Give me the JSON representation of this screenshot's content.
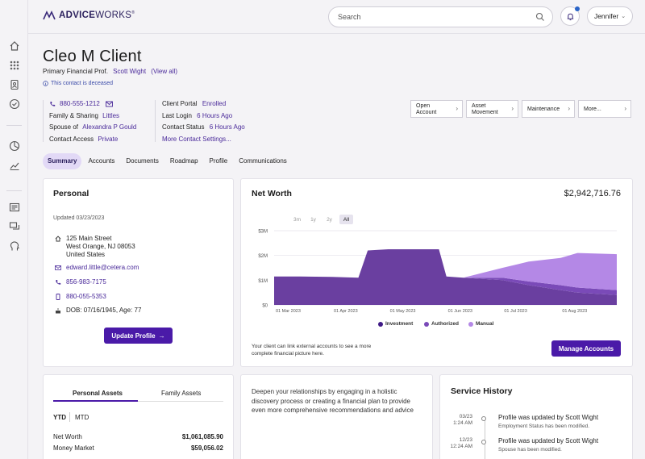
{
  "app": {
    "logo_bold": "ADVICE",
    "logo_light": "WORKS"
  },
  "header": {
    "search_placeholder": "Search",
    "user_name": "Jennifer"
  },
  "sidebar": {
    "items": [
      "home-icon",
      "apps-grid-icon",
      "id-card-icon",
      "checklist-icon",
      "pie-chart-icon",
      "trend-chart-icon",
      "news-icon",
      "chat-icon",
      "head-icon"
    ]
  },
  "client": {
    "name": "Cleo M Client",
    "primary_label": "Primary Financial Prof.",
    "primary_name": "Scott Wight",
    "view_all": "(View all)",
    "deceased_note": "This contact is deceased"
  },
  "info": {
    "phone": "880-555-1212",
    "family_label": "Family & Sharing",
    "family_value": "Littles",
    "spouse_label": "Spouse of",
    "spouse_value": "Alexandra P Gould",
    "contact_access_label": "Contact Access",
    "contact_access_value": "Private",
    "portal_label": "Client Portal",
    "portal_value": "Enrolled",
    "last_login_label": "Last Login",
    "last_login_value": "6 Hours Ago",
    "status_label": "Contact Status",
    "status_value": "6 Hours Ago",
    "more_settings": "More Contact Settings..."
  },
  "actions": [
    {
      "line1": "Open",
      "line2": "Account"
    },
    {
      "line1": "Asset",
      "line2": "Movement"
    },
    {
      "line1": "Maintenance",
      "line2": ""
    },
    {
      "line1": "More...",
      "line2": ""
    }
  ],
  "tabs": [
    "Summary",
    "Accounts",
    "Documents",
    "Roadmap",
    "Profile",
    "Communications"
  ],
  "personal": {
    "title": "Personal",
    "updated": "Updated 03/23/2023",
    "address1": "125 Main Street",
    "address2": "West Orange, NJ 08053",
    "address3": "United States",
    "email": "edward.little@cetera.com",
    "phone1": "856-983-7175",
    "phone2": "880-055-5353",
    "dob": "DOB: 07/16/1945, Age: 77",
    "update_button": "Update Profile"
  },
  "networth": {
    "title": "Net Worth",
    "total": "$2,942,716.76",
    "ranges": [
      "3m",
      "1y",
      "2y",
      "All"
    ],
    "selected_range": "All",
    "note": "Your client can link external accounts to see a more complete financial picture here.",
    "manage_button": "Manage Accounts"
  },
  "chart_data": {
    "type": "area",
    "stacked": true,
    "x": [
      "2023-03-01",
      "2023-03-15",
      "2023-04-01",
      "2023-04-15",
      "2023-04-20",
      "2023-05-01",
      "2023-05-15",
      "2023-05-28",
      "2023-06-01",
      "2023-06-10",
      "2023-07-01",
      "2023-07-15",
      "2023-08-01",
      "2023-08-10",
      "2023-08-31"
    ],
    "x_tick_labels": [
      "01 Mar 2023",
      "01 Apr 2023",
      "01 May 2023",
      "01 Jun 2023",
      "01 Jul 2023",
      "01 Aug 2023"
    ],
    "y_tick_labels": [
      "$0",
      "$1M",
      "$2M",
      "$3M"
    ],
    "ylim": [
      0,
      3000000
    ],
    "series": [
      {
        "name": "Investment",
        "color": "#6a3fa0",
        "values": [
          1150000,
          1150000,
          1130000,
          1100000,
          2200000,
          2250000,
          2250000,
          2250000,
          1150000,
          1100000,
          1000000,
          800000,
          600000,
          500000,
          400000
        ]
      },
      {
        "name": "Authorized",
        "color": "#7a4ab8",
        "values": [
          0,
          0,
          0,
          0,
          0,
          0,
          0,
          0,
          0,
          0,
          100000,
          150000,
          200000,
          200000,
          200000
        ]
      },
      {
        "name": "Manual",
        "color": "#b488e6",
        "values": [
          0,
          0,
          0,
          0,
          0,
          0,
          0,
          0,
          0,
          0,
          400000,
          800000,
          1100000,
          1400000,
          1450000
        ]
      }
    ],
    "legend": "bottom"
  },
  "assets": {
    "tab_personal": "Personal Assets",
    "tab_family": "Family Assets",
    "ytd": "YTD",
    "mtd": "MTD",
    "rows": [
      {
        "label": "Net Worth",
        "value": "$1,061,085.90"
      },
      {
        "label": "Money Market",
        "value": "$59,056.02"
      }
    ]
  },
  "engage": {
    "text": "Deepen your relationships by engaging in a holistic discovery process or creating a financial plan to provide even more comprehensive recommendations and advice"
  },
  "service": {
    "title": "Service History",
    "entries": [
      {
        "date": "03/23",
        "time": "1:24 AM",
        "main": "Profile was updated by Scott Wight",
        "sub": "Employment Status has been modified."
      },
      {
        "date": "12/23",
        "time": "12:24 AM",
        "main": "Profile was updated by Scott Wight",
        "sub": "Spouse has been modified."
      }
    ]
  }
}
